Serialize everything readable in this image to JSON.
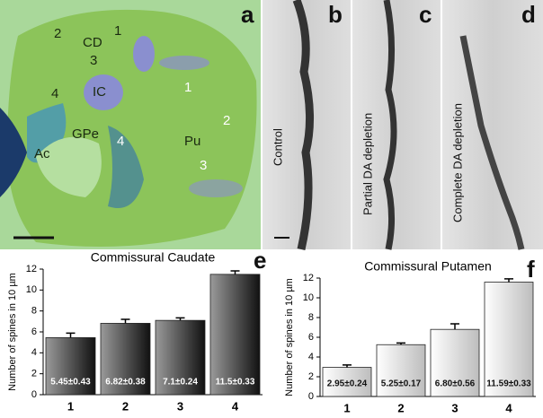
{
  "panels": {
    "a": {
      "letter": "a",
      "labels": [
        "2",
        "CD",
        "1",
        "3",
        "4",
        "IC",
        "1",
        "2",
        "GPe",
        "4",
        "Pu",
        "3",
        "Ac"
      ]
    },
    "b": {
      "letter": "b",
      "label": "Control"
    },
    "c": {
      "letter": "c",
      "label": "Partial DA depletion"
    },
    "d": {
      "letter": "d",
      "label": "Complete DA depletion"
    }
  },
  "chart_data": [
    {
      "type": "bar",
      "panel": "e",
      "title": "Commissural Caudate",
      "y_label": "Number of spines in 10 µm",
      "categories": [
        "1",
        "2",
        "3",
        "4"
      ],
      "values": [
        5.45,
        6.82,
        7.1,
        11.5
      ],
      "errors": [
        0.43,
        0.38,
        0.24,
        0.33
      ],
      "value_labels": [
        "5.45±0.43",
        "6.82±0.38",
        "7.1±0.24",
        "11.5±0.33"
      ],
      "color": "#111111",
      "ylim": [
        0,
        12
      ],
      "yticks": [
        0,
        2,
        4,
        6,
        8,
        10,
        12
      ]
    },
    {
      "type": "bar",
      "panel": "f",
      "title": "Commissural Putamen",
      "y_label": "Number of spines in 10 µm",
      "categories": [
        "1",
        "2",
        "3",
        "4"
      ],
      "values": [
        2.95,
        5.25,
        6.8,
        11.59
      ],
      "errors": [
        0.24,
        0.17,
        0.56,
        0.33
      ],
      "value_labels": [
        "2.95±0.24",
        "5.25±0.17",
        "6.80±0.56",
        "11.59±0.33"
      ],
      "color": "#bdbdbd",
      "ylim": [
        0,
        12
      ],
      "yticks": [
        0,
        2,
        4,
        6,
        8,
        10,
        12
      ]
    }
  ]
}
